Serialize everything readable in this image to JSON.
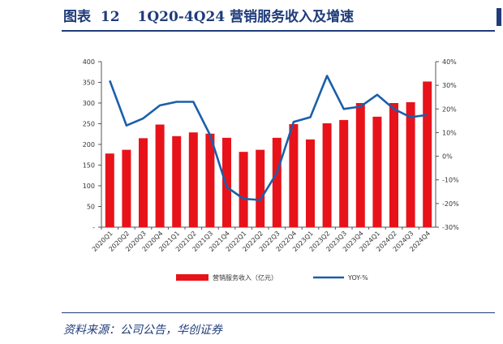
{
  "figure": {
    "label": "图表",
    "number": "12",
    "title": "1Q20-4Q24 营销服务收入及增速",
    "source": "资料来源：公司公告，华创证券"
  },
  "colors": {
    "bar": "#e8131a",
    "line": "#1b5faa",
    "rule": "#1f3b7a"
  },
  "chart_data": {
    "type": "bar",
    "categories": [
      "2020Q1",
      "2020Q2",
      "2020Q3",
      "2020Q4",
      "2021Q1",
      "2021Q2",
      "2021Q3",
      "2021Q4",
      "2022Q1",
      "2022Q2",
      "2022Q3",
      "2022Q4",
      "2023Q1",
      "2023Q2",
      "2023Q3",
      "2023Q4",
      "2024Q1",
      "2024Q2",
      "2024Q3",
      "2024Q4"
    ],
    "series": [
      {
        "name": "营销服务收入（亿元）",
        "type": "bar",
        "axis": "left",
        "values": [
          178,
          187,
          215,
          248,
          220,
          229,
          226,
          216,
          182,
          187,
          216,
          249,
          212,
          251,
          259,
          300,
          267,
          300,
          302,
          352
        ]
      },
      {
        "name": "YOY-%",
        "type": "line",
        "axis": "right",
        "values": [
          32,
          13,
          16,
          21.5,
          23,
          23,
          9,
          -13,
          -18,
          -18.5,
          -7,
          14.5,
          16.5,
          34,
          20,
          21,
          26,
          20,
          16.5,
          17.5
        ]
      }
    ],
    "y_left": {
      "min": 0,
      "max": 400,
      "ticks": [
        "-",
        "50",
        "100",
        "150",
        "200",
        "250",
        "300",
        "350",
        "400"
      ]
    },
    "y_right": {
      "min": -30,
      "max": 40,
      "ticks": [
        "-30%",
        "-20%",
        "-10%",
        "0%",
        "10%",
        "20%",
        "30%",
        "40%"
      ]
    },
    "legend": "bottom-center",
    "grid": false
  }
}
